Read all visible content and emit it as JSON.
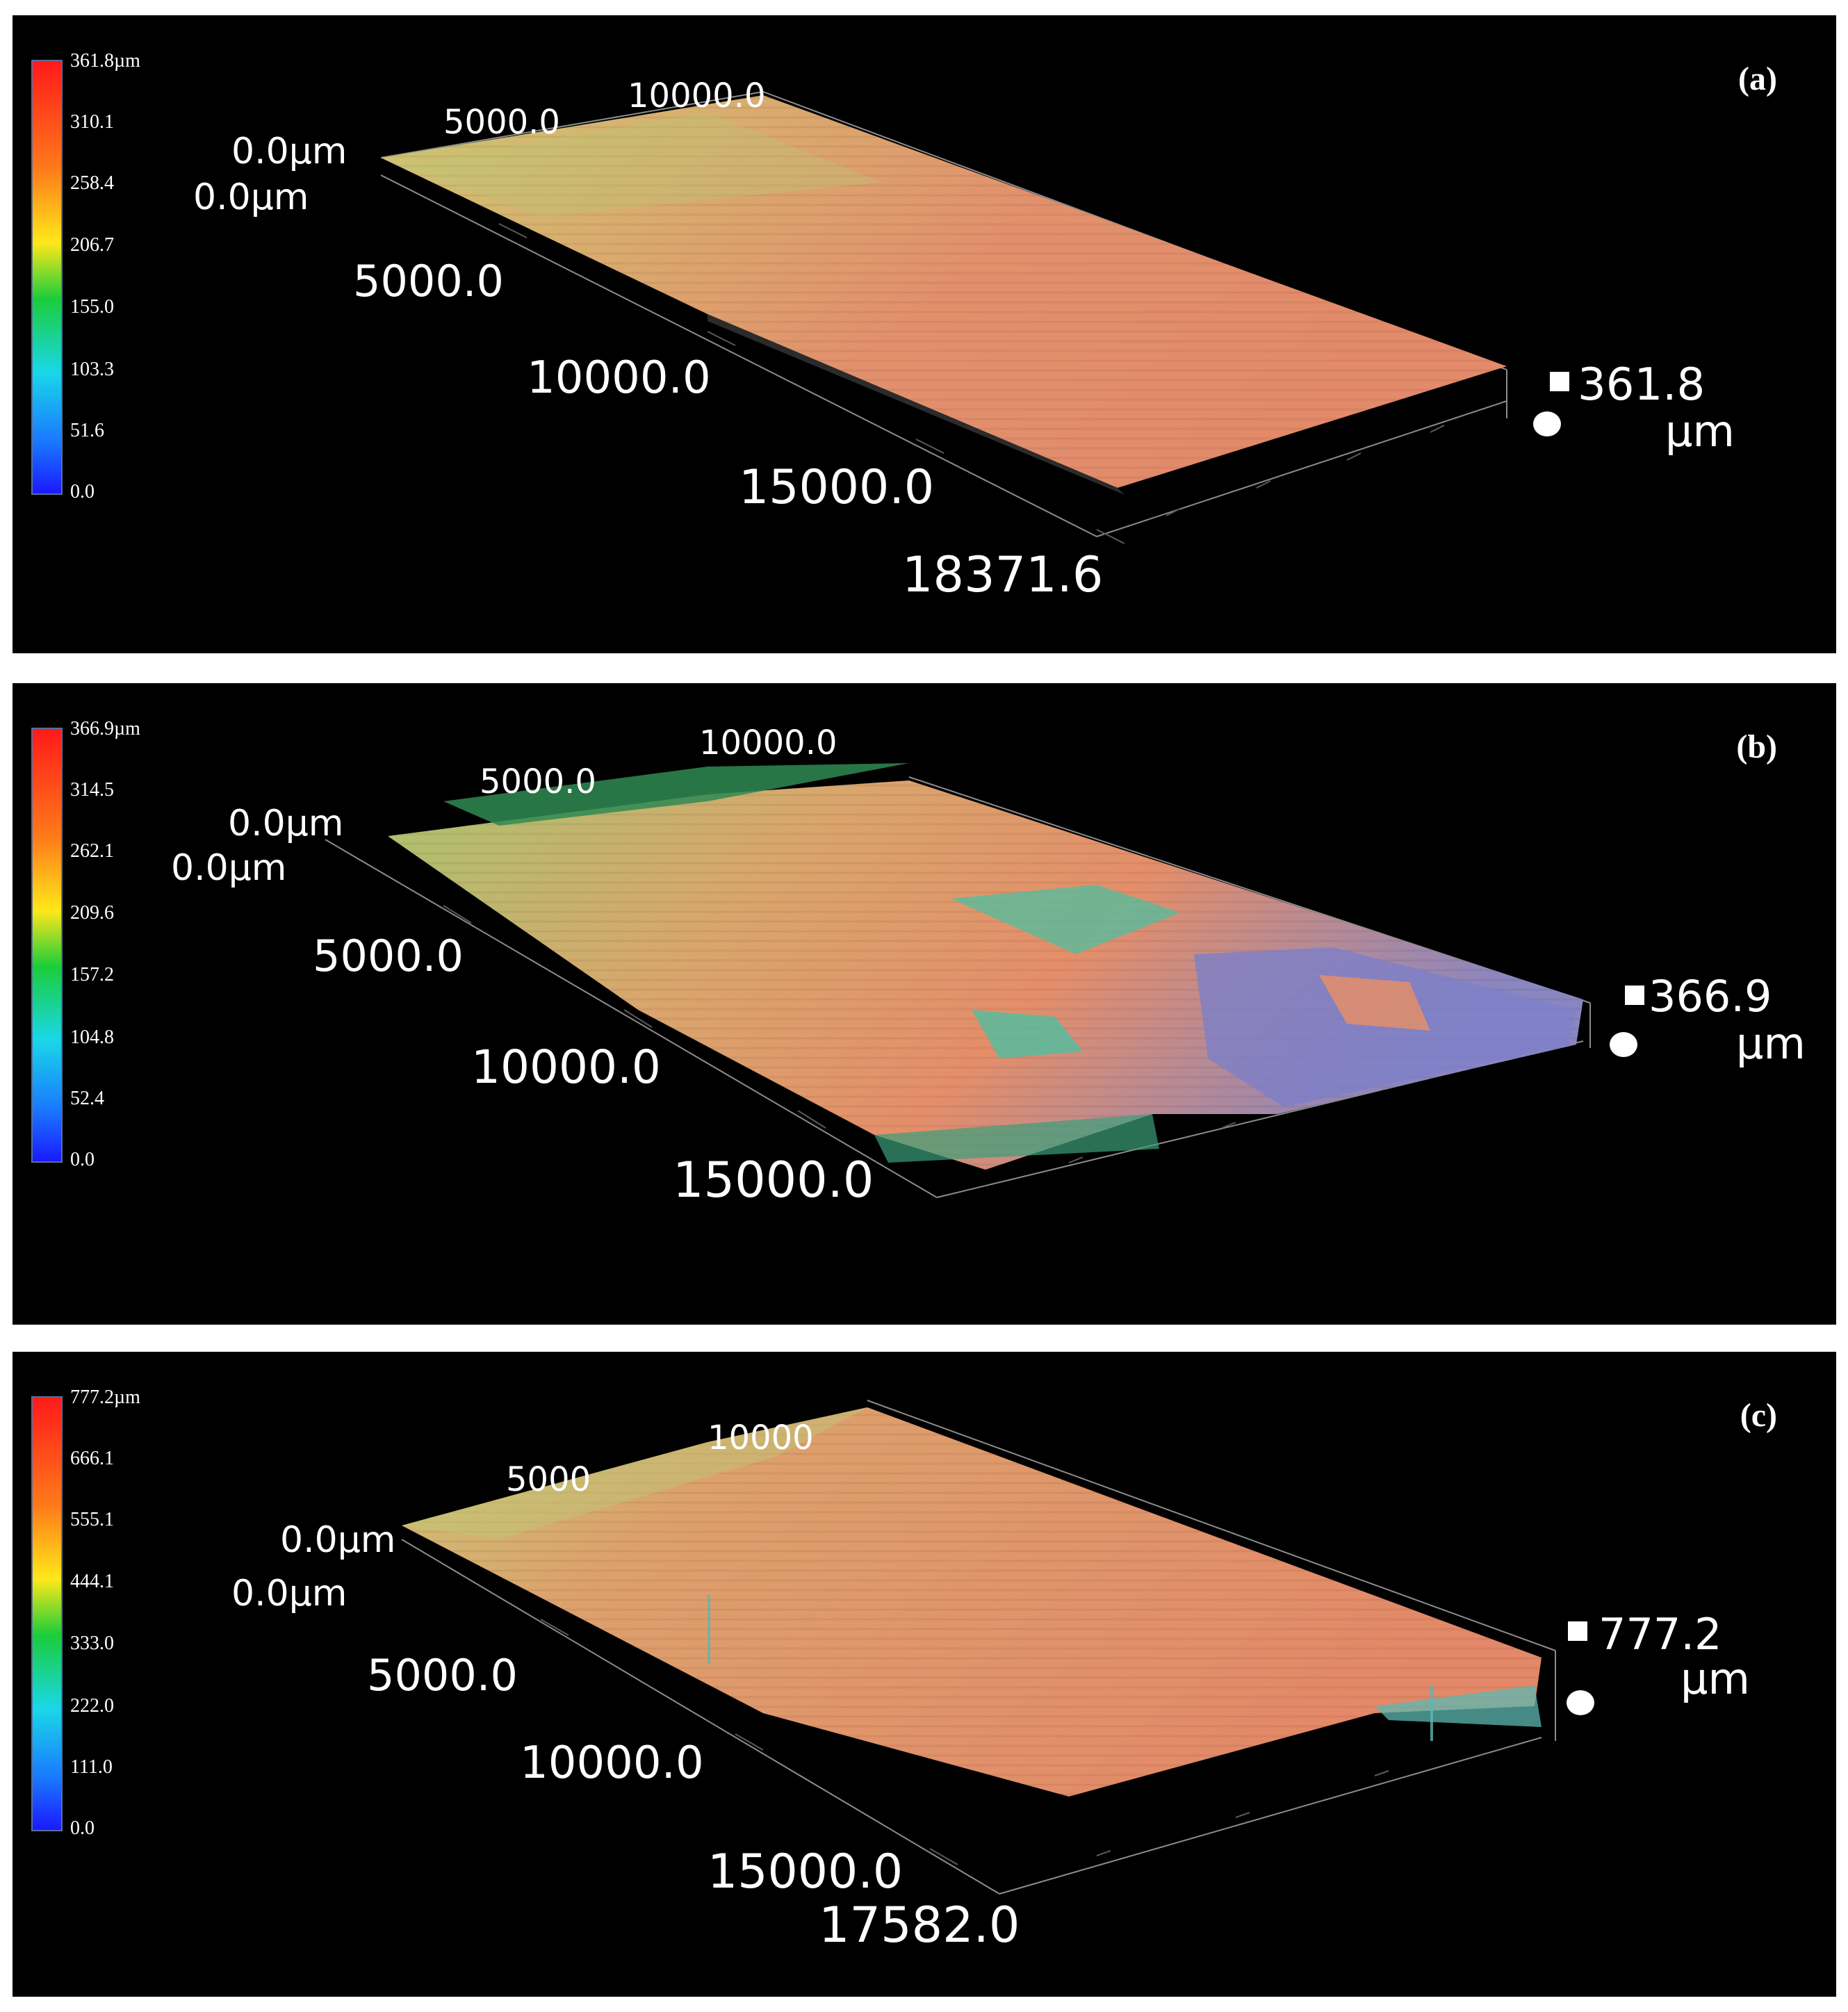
{
  "colors": {
    "background": "#000000",
    "surface_peak": "#e48a6a",
    "surface_mid": "#d6c676",
    "surface_low_green": "#3ab56a",
    "surface_low_blue": "#6f78c8",
    "colorbar_gradient": [
      "#ff1a1a",
      "#ff7a1a",
      "#ffe81a",
      "#1acd3a",
      "#1ad7e8",
      "#1a78ff",
      "#1a1aff"
    ]
  },
  "panels": [
    {
      "label": "(a)",
      "colorbar_ticks": [
        "361.8µm",
        "310.1",
        "258.4",
        "206.7",
        "155.0",
        "103.3",
        "51.6",
        "0.0"
      ],
      "axis_labels": {
        "top_origin": "0.0µm",
        "side_origin": "0.0µm",
        "top_ticks": [
          "5000.0",
          "10000.0"
        ],
        "side_ticks": [
          "5000.0",
          "10000.0",
          "15000.0",
          "18371.6"
        ],
        "z_max_value": "361.8",
        "z_unit": "µm"
      }
    },
    {
      "label": "(b)",
      "colorbar_ticks": [
        "366.9µm",
        "314.5",
        "262.1",
        "209.6",
        "157.2",
        "104.8",
        "52.4",
        "0.0"
      ],
      "axis_labels": {
        "top_origin": "0.0µm",
        "side_origin": "0.0µm",
        "top_ticks": [
          "5000.0",
          "10000.0"
        ],
        "side_ticks": [
          "5000.0",
          "10000.0",
          "15000.0"
        ],
        "z_max_value": "366.9",
        "z_unit": "µm"
      }
    },
    {
      "label": "(c)",
      "colorbar_ticks": [
        "777.2µm",
        "666.1",
        "555.1",
        "444.1",
        "333.0",
        "222.0",
        "111.0",
        "0.0"
      ],
      "axis_labels": {
        "top_origin": "0.0µm",
        "side_origin": "0.0µm",
        "top_ticks": [
          "5000",
          "10000"
        ],
        "side_ticks": [
          "5000.0",
          "10000.0",
          "15000.0",
          "17582.0"
        ],
        "z_max_value": "777.2",
        "z_unit": "µm"
      }
    }
  ]
}
